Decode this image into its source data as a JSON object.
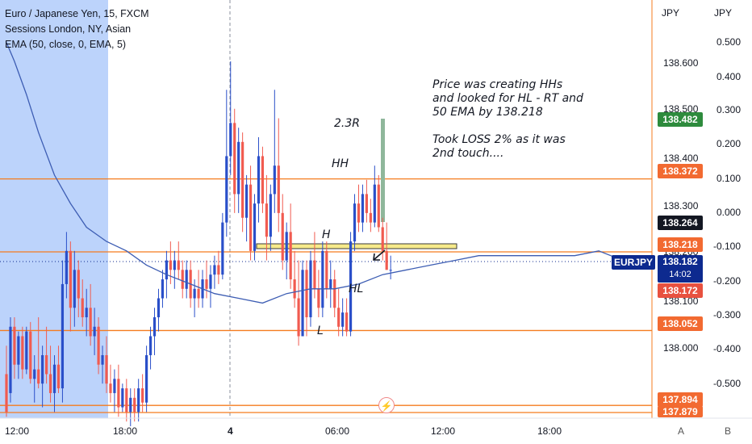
{
  "legend": {
    "symbol_line": "Euro / Japanese Yen, 15, FXCM",
    "sessions_line": "Sessions London, NY, Asian",
    "ema_line": "EMA (50, close, 0, EMA, 5)"
  },
  "annotations": {
    "note_lines": [
      "Price was creating HHs",
      "and looked for HL - RT and",
      "50 EMA by 138.218",
      "",
      "Took LOSS 2% as it was",
      "2nd touch...."
    ],
    "rr_label": "2.3R",
    "hh": "HH",
    "h": "H",
    "hl": "HL",
    "l": "L"
  },
  "axes": {
    "left_unit": "JPY",
    "right_unit": "JPY",
    "price_ticks": [
      "138.600",
      "138.500",
      "138.400",
      "138.300",
      "138.200",
      "138.100",
      "138.000"
    ],
    "pct_ticks": [
      "0.500",
      "0.400",
      "0.300",
      "0.200",
      "0.100",
      "0.000",
      "-0.100",
      "-0.200",
      "-0.300",
      "-0.400",
      "-0.500"
    ],
    "time_ticks": [
      "12:00",
      "18:00",
      "4",
      "06:00",
      "12:00",
      "18:00"
    ],
    "scale_a": "A",
    "scale_b": "B"
  },
  "price_tags": {
    "t138482": "138.482",
    "t138372": "138.372",
    "t138264": "138.264",
    "t138218": "138.218",
    "t138172": "138.172",
    "t138052": "138.052",
    "t137894": "137.894",
    "t137879": "137.879"
  },
  "current": {
    "symbol": "EURJPY",
    "price": "138.182",
    "countdown": "14:02"
  },
  "flash_icon": "lightning-icon",
  "colors": {
    "up": "#2a4fc9",
    "down": "#f15b50",
    "ema": "#3d5db3",
    "level": "#f57c1f",
    "session": "#bcd3fb",
    "target_tag": "#2e8b3d",
    "stop_tag": "#f26a31",
    "current": "#0d2a8f"
  },
  "chart_data": {
    "type": "candlestick",
    "title": "Euro / Japanese Yen, 15, FXCM",
    "ylim": [
      137.879,
      138.7
    ],
    "levels": [
      138.372,
      138.218,
      138.052,
      137.894,
      137.879
    ],
    "ema_points": [
      [
        0,
        138.66
      ],
      [
        2,
        138.62
      ],
      [
        5,
        138.55
      ],
      [
        8,
        138.47
      ],
      [
        12,
        138.38
      ],
      [
        16,
        138.32
      ],
      [
        20,
        138.27
      ],
      [
        25,
        138.24
      ],
      [
        30,
        138.22
      ],
      [
        35,
        138.19
      ],
      [
        40,
        138.17
      ],
      [
        46,
        138.15
      ],
      [
        52,
        138.13
      ],
      [
        58,
        138.12
      ],
      [
        64,
        138.11
      ],
      [
        70,
        138.13
      ],
      [
        76,
        138.14
      ],
      [
        82,
        138.14
      ],
      [
        88,
        138.15
      ],
      [
        94,
        138.17
      ],
      [
        100,
        138.18
      ],
      [
        106,
        138.19
      ],
      [
        112,
        138.2
      ],
      [
        118,
        138.21
      ],
      [
        124,
        138.21
      ],
      [
        130,
        138.21
      ],
      [
        136,
        138.21
      ],
      [
        142,
        138.21
      ],
      [
        148,
        138.22
      ],
      [
        154,
        138.2
      ]
    ],
    "candles": [
      {
        "o": 137.96,
        "h": 138.02,
        "l": 137.87,
        "c": 137.88
      },
      {
        "o": 137.92,
        "h": 138.08,
        "l": 137.9,
        "c": 138.06
      },
      {
        "o": 138.06,
        "h": 138.08,
        "l": 137.95,
        "c": 137.98
      },
      {
        "o": 137.98,
        "h": 138.05,
        "l": 137.95,
        "c": 138.04
      },
      {
        "o": 138.04,
        "h": 138.06,
        "l": 137.95,
        "c": 137.97
      },
      {
        "o": 137.97,
        "h": 138.06,
        "l": 137.96,
        "c": 138.05
      },
      {
        "o": 138.05,
        "h": 138.07,
        "l": 137.94,
        "c": 137.95
      },
      {
        "o": 137.95,
        "h": 138.0,
        "l": 137.9,
        "c": 137.97
      },
      {
        "o": 137.97,
        "h": 138.08,
        "l": 137.93,
        "c": 137.94
      },
      {
        "o": 137.94,
        "h": 138.02,
        "l": 137.89,
        "c": 138.0
      },
      {
        "o": 138.0,
        "h": 138.06,
        "l": 137.94,
        "c": 137.96
      },
      {
        "o": 137.96,
        "h": 138.02,
        "l": 137.9,
        "c": 137.92
      },
      {
        "o": 137.92,
        "h": 138.0,
        "l": 137.88,
        "c": 137.98
      },
      {
        "o": 137.98,
        "h": 138.02,
        "l": 137.92,
        "c": 137.93
      },
      {
        "o": 137.93,
        "h": 138.2,
        "l": 137.9,
        "c": 138.15
      },
      {
        "o": 138.15,
        "h": 138.26,
        "l": 138.12,
        "c": 138.22
      },
      {
        "o": 138.22,
        "h": 138.24,
        "l": 138.05,
        "c": 138.1
      },
      {
        "o": 138.1,
        "h": 138.22,
        "l": 138.06,
        "c": 138.18
      },
      {
        "o": 138.18,
        "h": 138.2,
        "l": 138.08,
        "c": 138.12
      },
      {
        "o": 138.12,
        "h": 138.16,
        "l": 138.06,
        "c": 138.08
      },
      {
        "o": 138.08,
        "h": 138.14,
        "l": 138.04,
        "c": 138.1
      },
      {
        "o": 138.1,
        "h": 138.15,
        "l": 138.02,
        "c": 138.04
      },
      {
        "o": 138.04,
        "h": 138.1,
        "l": 138.0,
        "c": 138.06
      },
      {
        "o": 138.06,
        "h": 138.08,
        "l": 137.96,
        "c": 137.98
      },
      {
        "o": 137.98,
        "h": 138.02,
        "l": 137.94,
        "c": 138.0
      },
      {
        "o": 138.0,
        "h": 138.04,
        "l": 137.92,
        "c": 137.94
      },
      {
        "o": 137.94,
        "h": 137.98,
        "l": 137.9,
        "c": 137.92
      },
      {
        "o": 137.92,
        "h": 137.97,
        "l": 137.88,
        "c": 137.95
      },
      {
        "o": 137.95,
        "h": 137.98,
        "l": 137.87,
        "c": 137.89
      },
      {
        "o": 137.89,
        "h": 137.94,
        "l": 137.88,
        "c": 137.93
      },
      {
        "o": 137.93,
        "h": 137.95,
        "l": 137.86,
        "c": 137.88
      },
      {
        "o": 137.88,
        "h": 137.93,
        "l": 137.85,
        "c": 137.91
      },
      {
        "o": 137.91,
        "h": 137.93,
        "l": 137.86,
        "c": 137.88
      },
      {
        "o": 137.88,
        "h": 137.95,
        "l": 137.86,
        "c": 137.93
      },
      {
        "o": 137.93,
        "h": 137.96,
        "l": 137.88,
        "c": 137.9
      },
      {
        "o": 137.9,
        "h": 138.02,
        "l": 137.88,
        "c": 138.0
      },
      {
        "o": 138.0,
        "h": 138.06,
        "l": 137.97,
        "c": 138.04
      },
      {
        "o": 138.04,
        "h": 138.1,
        "l": 138.0,
        "c": 138.08
      },
      {
        "o": 138.08,
        "h": 138.14,
        "l": 138.05,
        "c": 138.12
      },
      {
        "o": 138.12,
        "h": 138.18,
        "l": 138.1,
        "c": 138.16
      },
      {
        "o": 138.16,
        "h": 138.22,
        "l": 138.12,
        "c": 138.2
      },
      {
        "o": 138.2,
        "h": 138.24,
        "l": 138.15,
        "c": 138.18
      },
      {
        "o": 138.18,
        "h": 138.22,
        "l": 138.14,
        "c": 138.2
      },
      {
        "o": 138.2,
        "h": 138.24,
        "l": 138.16,
        "c": 138.18
      },
      {
        "o": 138.18,
        "h": 138.2,
        "l": 138.12,
        "c": 138.14
      },
      {
        "o": 138.14,
        "h": 138.2,
        "l": 138.12,
        "c": 138.18
      },
      {
        "o": 138.18,
        "h": 138.2,
        "l": 138.1,
        "c": 138.12
      },
      {
        "o": 138.12,
        "h": 138.16,
        "l": 138.08,
        "c": 138.14
      },
      {
        "o": 138.14,
        "h": 138.18,
        "l": 138.1,
        "c": 138.12
      },
      {
        "o": 138.12,
        "h": 138.18,
        "l": 138.1,
        "c": 138.16
      },
      {
        "o": 138.16,
        "h": 138.2,
        "l": 138.12,
        "c": 138.14
      },
      {
        "o": 138.14,
        "h": 138.19,
        "l": 138.1,
        "c": 138.17
      },
      {
        "o": 138.17,
        "h": 138.21,
        "l": 138.14,
        "c": 138.19
      },
      {
        "o": 138.19,
        "h": 138.22,
        "l": 138.15,
        "c": 138.17
      },
      {
        "o": 138.17,
        "h": 138.3,
        "l": 138.16,
        "c": 138.28
      },
      {
        "o": 138.28,
        "h": 138.56,
        "l": 138.25,
        "c": 138.42
      },
      {
        "o": 138.42,
        "h": 138.62,
        "l": 138.38,
        "c": 138.49
      },
      {
        "o": 138.49,
        "h": 138.52,
        "l": 138.3,
        "c": 138.34
      },
      {
        "o": 138.34,
        "h": 138.48,
        "l": 138.3,
        "c": 138.45
      },
      {
        "o": 138.45,
        "h": 138.47,
        "l": 138.26,
        "c": 138.29
      },
      {
        "o": 138.29,
        "h": 138.38,
        "l": 138.24,
        "c": 138.36
      },
      {
        "o": 138.36,
        "h": 138.4,
        "l": 138.2,
        "c": 138.22
      },
      {
        "o": 138.22,
        "h": 138.34,
        "l": 138.2,
        "c": 138.32
      },
      {
        "o": 138.32,
        "h": 138.46,
        "l": 138.28,
        "c": 138.42
      },
      {
        "o": 138.42,
        "h": 138.44,
        "l": 138.3,
        "c": 138.32
      },
      {
        "o": 138.32,
        "h": 138.38,
        "l": 138.2,
        "c": 138.25
      },
      {
        "o": 138.25,
        "h": 138.36,
        "l": 138.22,
        "c": 138.34
      },
      {
        "o": 138.34,
        "h": 138.56,
        "l": 138.3,
        "c": 138.4
      },
      {
        "o": 138.4,
        "h": 138.5,
        "l": 138.26,
        "c": 138.3
      },
      {
        "o": 138.3,
        "h": 138.34,
        "l": 138.18,
        "c": 138.2
      },
      {
        "o": 138.2,
        "h": 138.28,
        "l": 138.16,
        "c": 138.26
      },
      {
        "o": 138.26,
        "h": 138.32,
        "l": 138.14,
        "c": 138.16
      },
      {
        "o": 138.16,
        "h": 138.22,
        "l": 138.1,
        "c": 138.12
      },
      {
        "o": 138.12,
        "h": 138.2,
        "l": 138.02,
        "c": 138.04
      },
      {
        "o": 138.04,
        "h": 138.2,
        "l": 138.04,
        "c": 138.18
      },
      {
        "o": 138.18,
        "h": 138.2,
        "l": 138.04,
        "c": 138.08
      },
      {
        "o": 138.08,
        "h": 138.22,
        "l": 138.06,
        "c": 138.2
      },
      {
        "o": 138.2,
        "h": 138.26,
        "l": 138.12,
        "c": 138.14
      },
      {
        "o": 138.14,
        "h": 138.18,
        "l": 138.08,
        "c": 138.1
      },
      {
        "o": 138.1,
        "h": 138.24,
        "l": 138.08,
        "c": 138.22
      },
      {
        "o": 138.22,
        "h": 138.24,
        "l": 138.12,
        "c": 138.14
      },
      {
        "o": 138.14,
        "h": 138.2,
        "l": 138.1,
        "c": 138.16
      },
      {
        "o": 138.16,
        "h": 138.18,
        "l": 138.08,
        "c": 138.1
      },
      {
        "o": 138.1,
        "h": 138.14,
        "l": 138.04,
        "c": 138.06
      },
      {
        "o": 138.06,
        "h": 138.12,
        "l": 138.04,
        "c": 138.09
      },
      {
        "o": 138.09,
        "h": 138.12,
        "l": 138.04,
        "c": 138.05
      },
      {
        "o": 138.05,
        "h": 138.26,
        "l": 138.04,
        "c": 138.24
      },
      {
        "o": 138.24,
        "h": 138.34,
        "l": 138.22,
        "c": 138.32
      },
      {
        "o": 138.32,
        "h": 138.36,
        "l": 138.26,
        "c": 138.28
      },
      {
        "o": 138.28,
        "h": 138.36,
        "l": 138.26,
        "c": 138.34
      },
      {
        "o": 138.34,
        "h": 138.37,
        "l": 138.28,
        "c": 138.3
      },
      {
        "o": 138.3,
        "h": 138.33,
        "l": 138.26,
        "c": 138.28
      },
      {
        "o": 138.28,
        "h": 138.4,
        "l": 138.27,
        "c": 138.36
      },
      {
        "o": 138.36,
        "h": 138.38,
        "l": 138.26,
        "c": 138.27
      },
      {
        "o": 138.27,
        "h": 138.29,
        "l": 138.2,
        "c": 138.22
      },
      {
        "o": 138.22,
        "h": 138.28,
        "l": 138.18,
        "c": 138.18
      },
      {
        "o": 138.18,
        "h": 138.21,
        "l": 138.16,
        "c": 138.18
      }
    ]
  }
}
